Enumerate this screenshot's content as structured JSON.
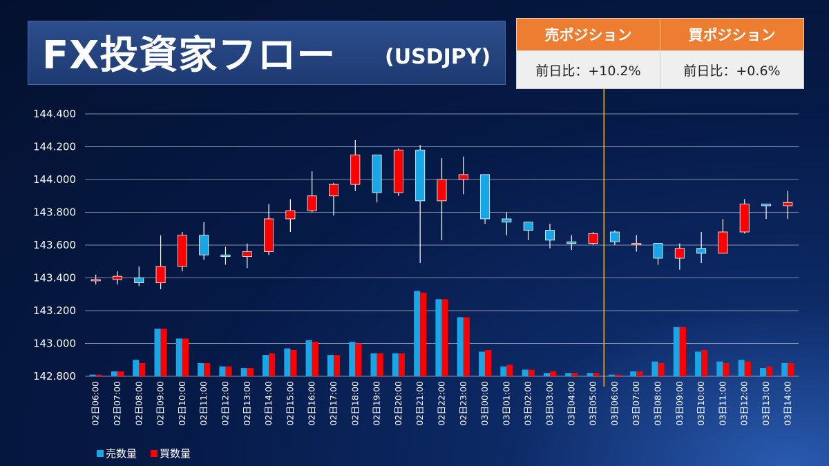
{
  "header": {
    "title": "FX投資家フロー",
    "pair": "(USDJPY)"
  },
  "positions": {
    "sell_header": "売ポジション",
    "buy_header": "買ポジション",
    "sell_value": "前日比：+10.2%",
    "buy_value": "前日比：+0.6%"
  },
  "colors": {
    "sell": "#17a7e6",
    "buy": "#ff0000",
    "header_bg": "#ed7d31",
    "marker_line": "#f5b91e"
  },
  "chart_data": {
    "type": "candlestick+bar",
    "ylim": [
      142.8,
      144.4
    ],
    "yticks": [
      "144.400",
      "144.200",
      "144.000",
      "143.800",
      "143.600",
      "143.400",
      "143.200",
      "143.000",
      "142.800"
    ],
    "grid": true,
    "legend_position": "bottom-left",
    "marker_after_category": "03日05:00",
    "categories": [
      "02日06:00",
      "02日07:00",
      "02日08:00",
      "02日09:00",
      "02日10:00",
      "02日11:00",
      "02日12:00",
      "02日13:00",
      "02日14:00",
      "02日15:00",
      "02日16:00",
      "02日17:00",
      "02日18:00",
      "02日19:00",
      "02日20:00",
      "02日21:00",
      "02日22:00",
      "02日23:00",
      "03日00:00",
      "03日01:00",
      "03日02:00",
      "03日03:00",
      "03日04:00",
      "03日05:00",
      "03日06:00",
      "03日07:00",
      "03日08:00",
      "03日09:00",
      "03日10:00",
      "03日11:00",
      "03日12:00",
      "03日13:00",
      "03日14:00"
    ],
    "candles": [
      {
        "o": 143.39,
        "h": 143.42,
        "l": 143.36,
        "c": 143.39
      },
      {
        "o": 143.39,
        "h": 143.44,
        "l": 143.36,
        "c": 143.41
      },
      {
        "o": 143.4,
        "h": 143.47,
        "l": 143.35,
        "c": 143.37
      },
      {
        "o": 143.37,
        "h": 143.66,
        "l": 143.33,
        "c": 143.47
      },
      {
        "o": 143.47,
        "h": 143.68,
        "l": 143.44,
        "c": 143.66
      },
      {
        "o": 143.66,
        "h": 143.74,
        "l": 143.51,
        "c": 143.54
      },
      {
        "o": 143.54,
        "h": 143.59,
        "l": 143.48,
        "c": 143.53
      },
      {
        "o": 143.53,
        "h": 143.61,
        "l": 143.46,
        "c": 143.56
      },
      {
        "o": 143.56,
        "h": 143.85,
        "l": 143.54,
        "c": 143.76
      },
      {
        "o": 143.76,
        "h": 143.88,
        "l": 143.68,
        "c": 143.81
      },
      {
        "o": 143.81,
        "h": 144.05,
        "l": 143.8,
        "c": 143.9
      },
      {
        "o": 143.9,
        "h": 143.98,
        "l": 143.78,
        "c": 143.97
      },
      {
        "o": 143.97,
        "h": 144.24,
        "l": 143.93,
        "c": 144.15
      },
      {
        "o": 144.15,
        "h": 144.15,
        "l": 143.86,
        "c": 143.92
      },
      {
        "o": 143.92,
        "h": 144.19,
        "l": 143.9,
        "c": 144.18
      },
      {
        "o": 144.18,
        "h": 144.21,
        "l": 143.49,
        "c": 143.87
      },
      {
        "o": 143.87,
        "h": 144.13,
        "l": 143.63,
        "c": 144.0
      },
      {
        "o": 144.0,
        "h": 144.14,
        "l": 143.91,
        "c": 144.03
      },
      {
        "o": 144.03,
        "h": 144.03,
        "l": 143.73,
        "c": 143.76
      },
      {
        "o": 143.76,
        "h": 143.8,
        "l": 143.66,
        "c": 143.74
      },
      {
        "o": 143.74,
        "h": 143.74,
        "l": 143.63,
        "c": 143.69
      },
      {
        "o": 143.69,
        "h": 143.73,
        "l": 143.58,
        "c": 143.63
      },
      {
        "o": 143.62,
        "h": 143.66,
        "l": 143.57,
        "c": 143.61
      },
      {
        "o": 143.61,
        "h": 143.68,
        "l": 143.6,
        "c": 143.67
      },
      {
        "o": 143.68,
        "h": 143.69,
        "l": 143.6,
        "c": 143.62
      },
      {
        "o": 143.61,
        "h": 143.66,
        "l": 143.56,
        "c": 143.61
      },
      {
        "o": 143.61,
        "h": 143.61,
        "l": 143.48,
        "c": 143.52
      },
      {
        "o": 143.52,
        "h": 143.61,
        "l": 143.45,
        "c": 143.58
      },
      {
        "o": 143.58,
        "h": 143.68,
        "l": 143.49,
        "c": 143.55
      },
      {
        "o": 143.55,
        "h": 143.76,
        "l": 143.55,
        "c": 143.68
      },
      {
        "o": 143.68,
        "h": 143.88,
        "l": 143.67,
        "c": 143.85
      },
      {
        "o": 143.85,
        "h": 143.85,
        "l": 143.76,
        "c": 143.84
      },
      {
        "o": 143.84,
        "h": 143.93,
        "l": 143.76,
        "c": 143.86
      }
    ],
    "series": [
      {
        "name": "売数量",
        "values": [
          142.81,
          142.83,
          142.9,
          143.09,
          143.03,
          142.88,
          142.86,
          142.85,
          142.93,
          142.97,
          143.02,
          142.93,
          143.01,
          142.94,
          142.94,
          143.32,
          143.27,
          143.16,
          142.95,
          142.86,
          142.84,
          142.82,
          142.82,
          142.82,
          142.81,
          142.83,
          142.89,
          143.1,
          142.95,
          142.89,
          142.9,
          142.85,
          142.88
        ]
      },
      {
        "name": "買数量",
        "values": [
          142.81,
          142.83,
          142.88,
          143.09,
          143.03,
          142.88,
          142.86,
          142.85,
          142.94,
          142.96,
          143.01,
          142.93,
          143.0,
          142.94,
          142.94,
          143.31,
          143.27,
          143.16,
          142.96,
          142.87,
          142.84,
          142.83,
          142.82,
          142.82,
          142.81,
          142.83,
          142.88,
          143.1,
          142.96,
          142.88,
          142.89,
          142.86,
          142.88
        ]
      }
    ]
  }
}
